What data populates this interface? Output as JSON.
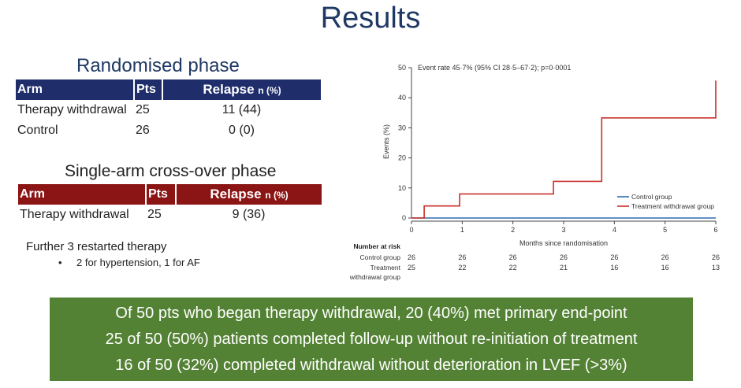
{
  "title": "Results",
  "randomised": {
    "heading": "Randomised phase",
    "headers": {
      "arm": "Arm",
      "pts": "Pts",
      "relapse": "Relapse",
      "relapse_unit": "n (%)"
    },
    "rows": [
      {
        "arm": "Therapy withdrawal",
        "pts": "25",
        "relapse": "11 (44)"
      },
      {
        "arm": "Control",
        "pts": "26",
        "relapse": "0 (0)"
      }
    ]
  },
  "crossover": {
    "heading": "Single-arm cross-over phase",
    "headers": {
      "arm": "Arm",
      "pts": "Pts",
      "relapse": "Relapse",
      "relapse_unit": "n (%)"
    },
    "rows": [
      {
        "arm": "Therapy withdrawal",
        "pts": "25",
        "relapse": "9 (36)"
      }
    ]
  },
  "notes": {
    "restart": "Further 3 restarted therapy",
    "bullet_mark": "•",
    "bullet": "2 for hypertension, 1 for AF"
  },
  "summary": [
    "Of 50 pts who began therapy withdrawal, 20 (40%) met primary end-point",
    "25 of 50 (50%) patients completed follow-up without re-initiation of treatment",
    "16 of 50 (32%) completed withdrawal without deterioration in LVEF (>3%)"
  ],
  "chart_data": {
    "type": "line",
    "annotation": "Event rate 45·7% (95% CI 28·5–67·2); p=0·0001",
    "xlabel": "Months since randomisation",
    "ylabel": "Events (%)",
    "xlim": [
      0,
      6
    ],
    "ylim": [
      0,
      50
    ],
    "xticks": [
      0,
      1,
      2,
      3,
      4,
      5,
      6
    ],
    "yticks": [
      0,
      10,
      20,
      30,
      40,
      50
    ],
    "legend_position": "right",
    "series": [
      {
        "name": "Control group",
        "color": "#2e6db4",
        "step": true,
        "points": [
          [
            0,
            0
          ],
          [
            6,
            0
          ]
        ]
      },
      {
        "name": "Treatment withdrawal group",
        "color": "#c8302b",
        "step": true,
        "points": [
          [
            0,
            0
          ],
          [
            0.25,
            0
          ],
          [
            0.25,
            4
          ],
          [
            0.95,
            4
          ],
          [
            0.95,
            8
          ],
          [
            2.8,
            8
          ],
          [
            2.8,
            12.2
          ],
          [
            3.75,
            12.2
          ],
          [
            3.75,
            33.3
          ],
          [
            6,
            33.3
          ],
          [
            6,
            45.7
          ]
        ]
      }
    ],
    "risk_table": {
      "heading": "Number at risk",
      "times": [
        0,
        1,
        2,
        3,
        4,
        5,
        6
      ],
      "rows": [
        {
          "label": "Control group",
          "values": [
            "26",
            "26",
            "26",
            "26",
            "26",
            "26",
            "26"
          ]
        },
        {
          "label": "Treatment",
          "label2": "withdrawal group",
          "values": [
            "25",
            "22",
            "22",
            "21",
            "16",
            "16",
            "13"
          ]
        }
      ]
    }
  }
}
